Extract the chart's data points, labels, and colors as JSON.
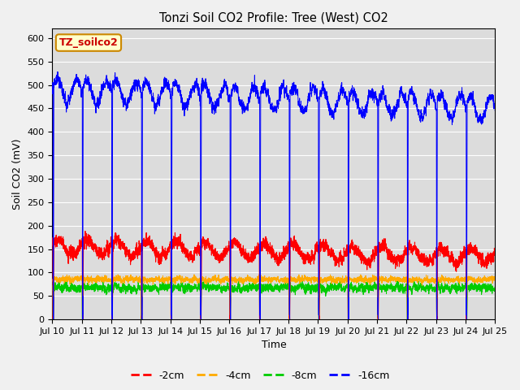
{
  "title": "Tonzi Soil CO2 Profile: Tree (West) CO2",
  "xlabel": "Time",
  "ylabel": "Soil CO2 (mV)",
  "ylim": [
    0,
    620
  ],
  "yticks": [
    0,
    50,
    100,
    150,
    200,
    250,
    300,
    350,
    400,
    450,
    500,
    550,
    600
  ],
  "xtick_labels": [
    "Jul 10",
    "Jul 11",
    "Jul 12",
    "Jul 13",
    "Jul 14",
    "Jul 15",
    "Jul 16",
    "Jul 17",
    "Jul 18",
    "Jul 19",
    "Jul 20",
    "Jul 21",
    "Jul 22",
    "Jul 23",
    "Jul 24",
    "Jul 25"
  ],
  "legend_label": "TZ_soilco2",
  "legend_box_facecolor": "#ffffcc",
  "legend_box_edgecolor": "#cc8800",
  "legend_text_color": "#cc0000",
  "colors": {
    "2cm": "#ff0000",
    "4cm": "#ffaa00",
    "8cm": "#00cc00",
    "16cm": "#0000ff"
  },
  "plot_bg": "#dcdcdc",
  "fig_bg": "#f0f0f0",
  "grid_color": "#ffffff",
  "n_days": 15,
  "pts_per_day": 288,
  "seed": 7
}
